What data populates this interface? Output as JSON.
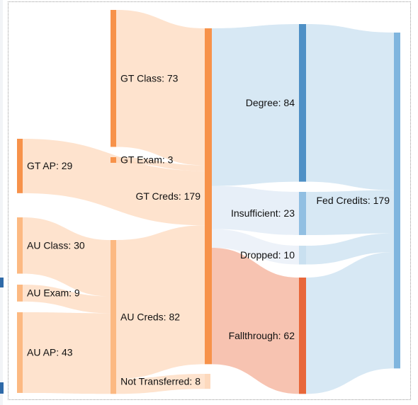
{
  "chart_data": {
    "type": "sankey",
    "nodes": [
      {
        "id": "gt_class",
        "name": "GT Class",
        "value": 73
      },
      {
        "id": "gt_exam",
        "name": "GT Exam",
        "value": 3
      },
      {
        "id": "gt_ap",
        "name": "GT AP",
        "value": 29
      },
      {
        "id": "au_class",
        "name": "AU Class",
        "value": 30
      },
      {
        "id": "au_exam",
        "name": "AU Exam",
        "value": 9
      },
      {
        "id": "au_ap",
        "name": "AU AP",
        "value": 43
      },
      {
        "id": "au_creds",
        "name": "AU Creds",
        "value": 82
      },
      {
        "id": "not_transferred",
        "name": "Not Transferred",
        "value": 8
      },
      {
        "id": "gt_creds",
        "name": "GT Creds",
        "value": 179
      },
      {
        "id": "degree",
        "name": "Degree",
        "value": 84
      },
      {
        "id": "insufficient",
        "name": "Insufficient",
        "value": 23
      },
      {
        "id": "dropped",
        "name": "Dropped",
        "value": 10
      },
      {
        "id": "fallthrough",
        "name": "Fallthrough",
        "value": 62
      },
      {
        "id": "fed_credits",
        "name": "Fed Credits",
        "value": 179
      }
    ],
    "links": [
      {
        "source": "gt_class",
        "target": "gt_creds",
        "value": 73
      },
      {
        "source": "gt_exam",
        "target": "gt_creds",
        "value": 3
      },
      {
        "source": "gt_ap",
        "target": "gt_creds",
        "value": 29
      },
      {
        "source": "au_class",
        "target": "au_creds",
        "value": 30
      },
      {
        "source": "au_exam",
        "target": "au_creds",
        "value": 9
      },
      {
        "source": "au_ap",
        "target": "au_creds",
        "value": 43
      },
      {
        "source": "au_creds",
        "target": "gt_creds",
        "value": 74
      },
      {
        "source": "au_creds",
        "target": "not_transferred",
        "value": 8
      },
      {
        "source": "gt_creds",
        "target": "degree",
        "value": 84
      },
      {
        "source": "gt_creds",
        "target": "insufficient",
        "value": 23
      },
      {
        "source": "gt_creds",
        "target": "dropped",
        "value": 10
      },
      {
        "source": "gt_creds",
        "target": "fallthrough",
        "value": 62
      },
      {
        "source": "degree",
        "target": "fed_credits",
        "value": 84
      },
      {
        "source": "insufficient",
        "target": "fed_credits",
        "value": 23
      },
      {
        "source": "dropped",
        "target": "fed_credits",
        "value": 10
      },
      {
        "source": "fallthrough",
        "target": "fed_credits",
        "value": 62
      }
    ],
    "colors": {
      "orange_dark": "#f7924a",
      "orange_light": "#fcb982",
      "orange_link": "#fdd9bd",
      "blue_dark": "#4e90c6",
      "blue_mid": "#91bfe2",
      "blue_light": "#c9e0f0",
      "blue_node": "#7fb5de",
      "red_dark": "#e8673a",
      "red_link": "#f6b8a3",
      "ui_accent": "#2f6aa8"
    }
  }
}
